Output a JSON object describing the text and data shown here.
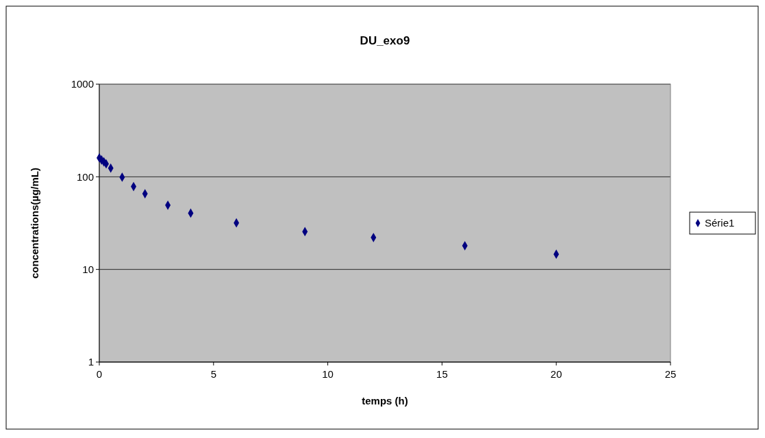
{
  "chart_data": {
    "type": "scatter",
    "title": "DU_exo9",
    "xlabel": "temps (h)",
    "ylabel": "concentrations(µg/mL)",
    "x": [
      0,
      0.1,
      0.2,
      0.3,
      0.5,
      1,
      1.5,
      2,
      3,
      4,
      6,
      9,
      12,
      16,
      20
    ],
    "series": [
      {
        "name": "Série1",
        "color": "#000080",
        "values": [
          160,
          152,
          145,
          138,
          124,
          99,
          78.5,
          65.6,
          49.4,
          40.5,
          31.8,
          25.6,
          22.1,
          18,
          14.6
        ]
      }
    ],
    "xlim": [
      0,
      25
    ],
    "xticks": [
      0,
      5,
      10,
      15,
      20,
      25
    ],
    "ylim": [
      1,
      1000
    ],
    "yticks": [
      1,
      10,
      100,
      1000
    ],
    "log": "y",
    "grid": "y",
    "legend": "right",
    "marker": "diamond"
  }
}
